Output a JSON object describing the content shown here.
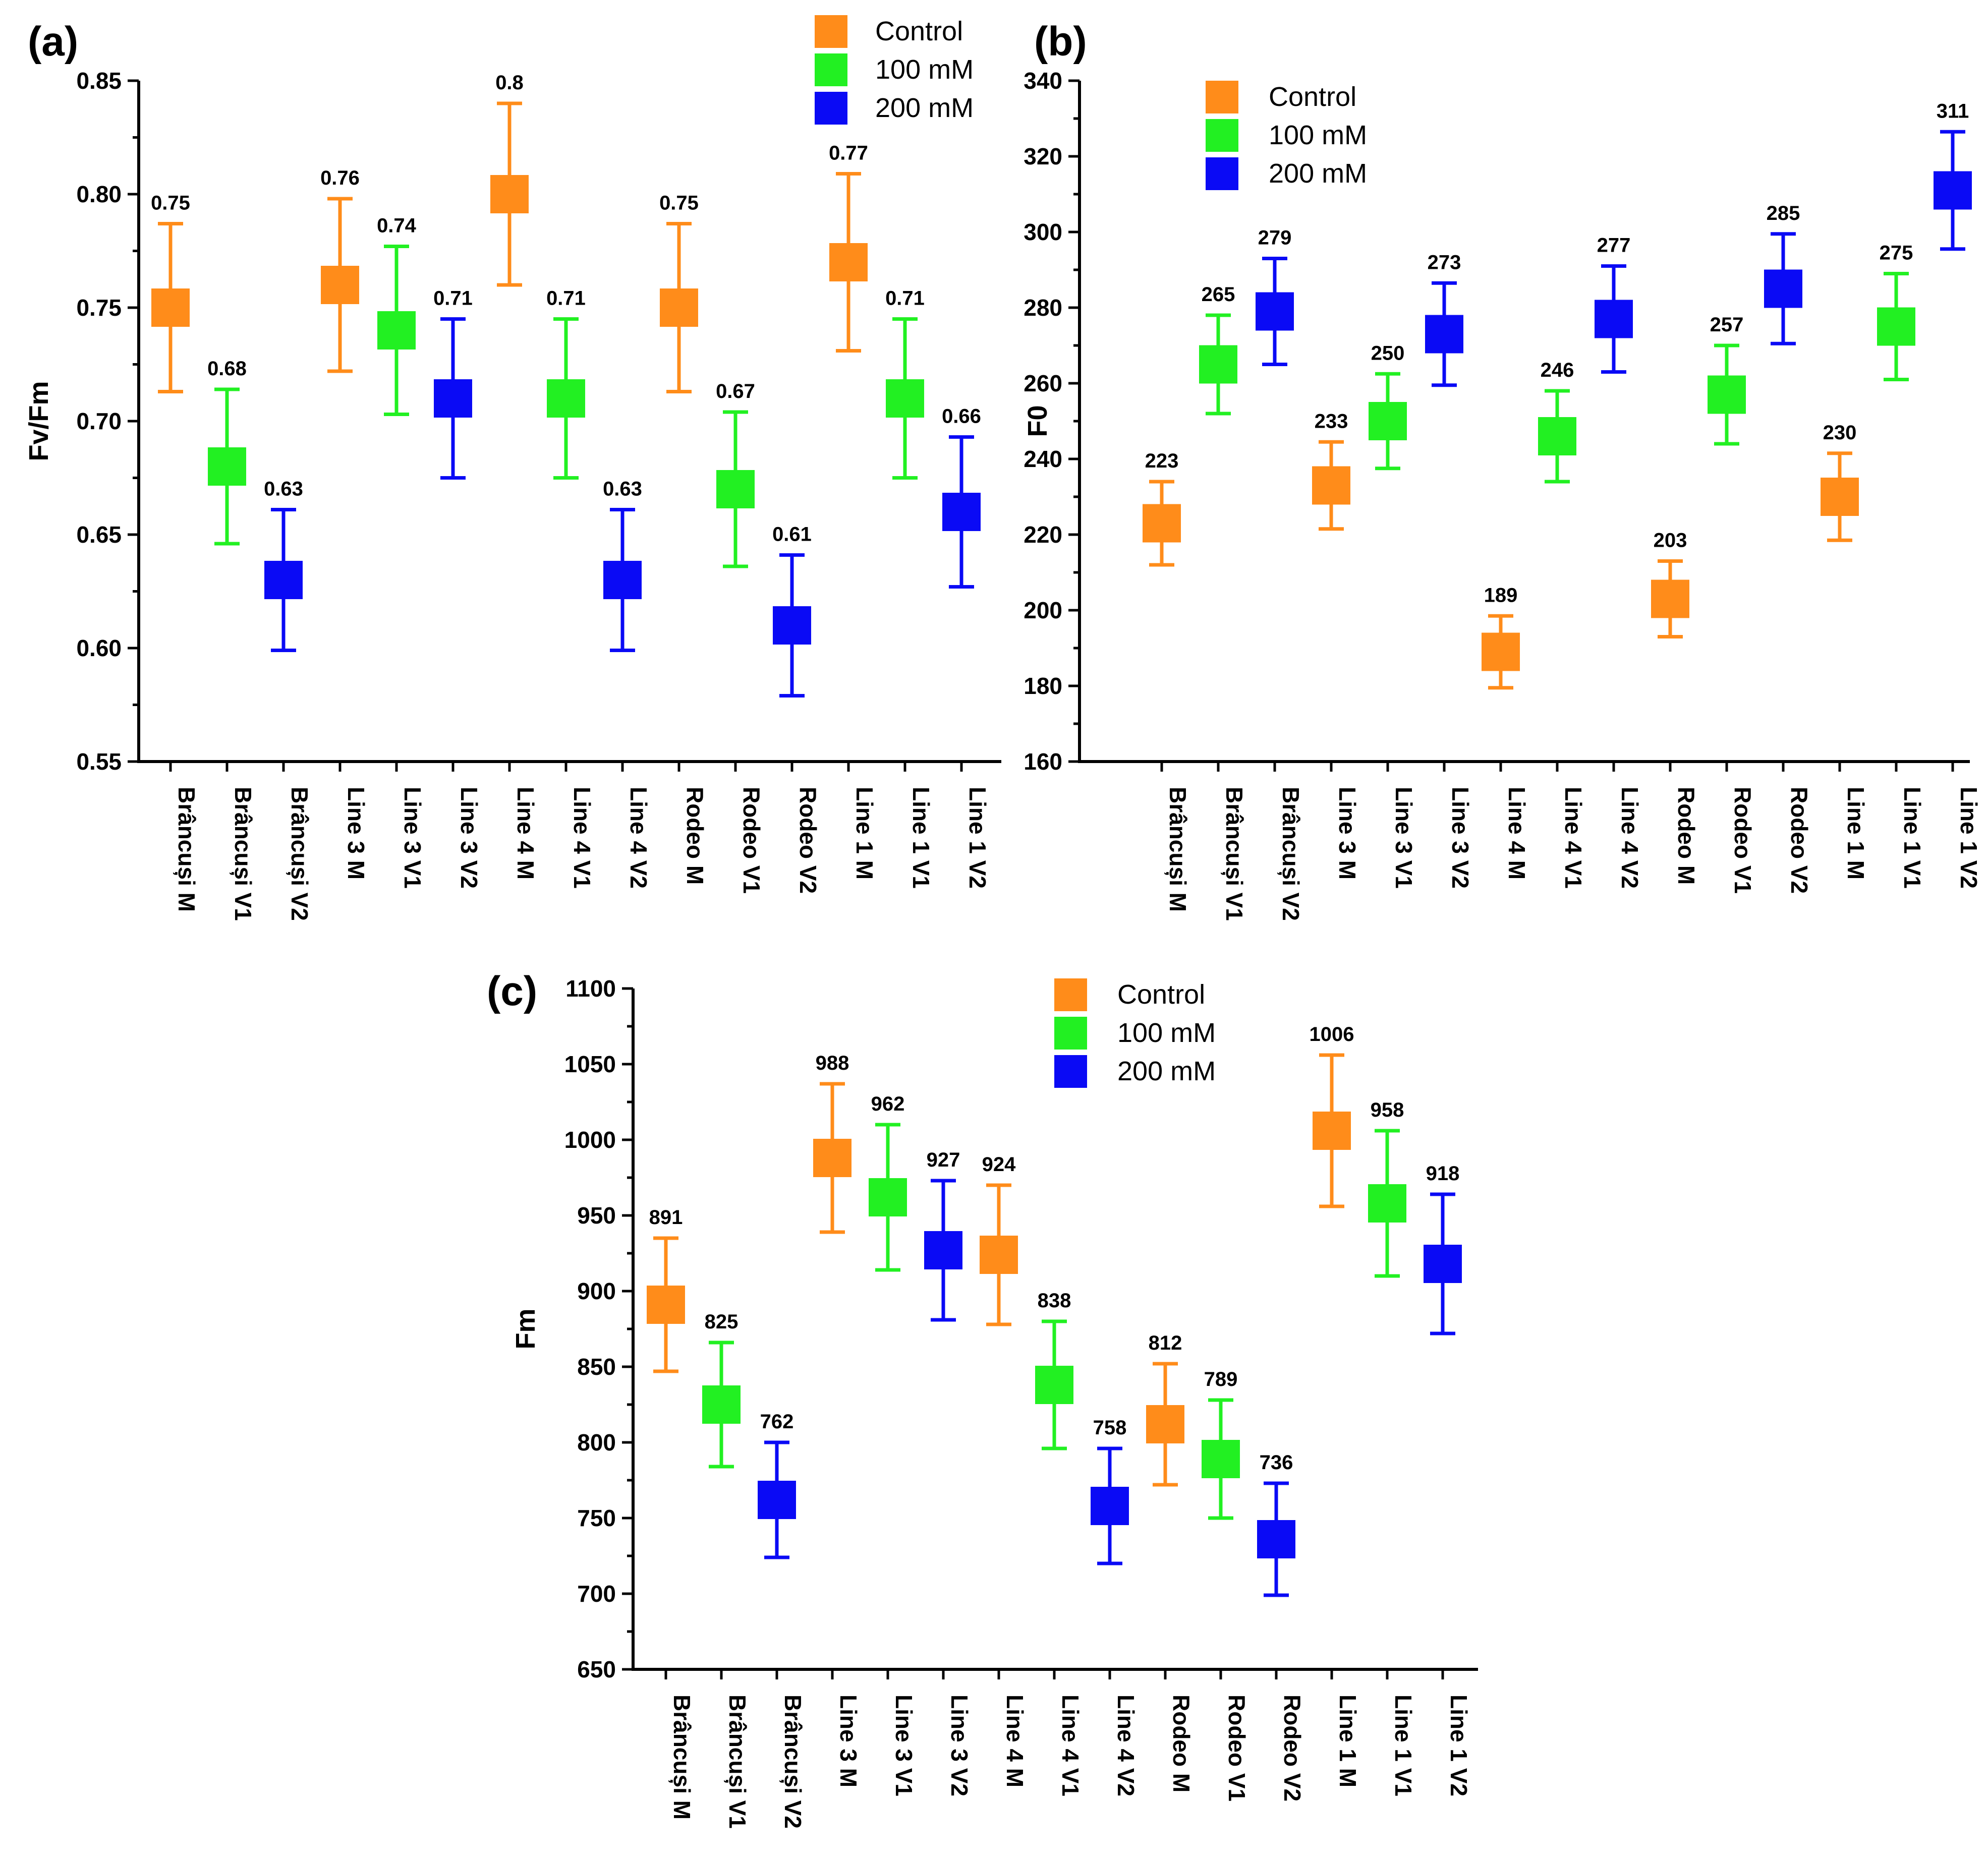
{
  "colors": {
    "control": "#FF8C1A",
    "100mM": "#22F022",
    "200mM": "#0A0AF5"
  },
  "chart_data": [
    {
      "id": "a",
      "panel_label": "(a)",
      "type": "scatter",
      "subtype": "mean-with-error-bars",
      "ylabel": "Fv/Fm",
      "ylim": [
        0.55,
        0.85
      ],
      "yticks": [
        "0.55",
        "0.60",
        "0.65",
        "0.70",
        "0.75",
        "0.80",
        "0.85"
      ],
      "legend": [
        "Control",
        "100 mM",
        "200 mM"
      ],
      "legend_position": "top-right",
      "categories": [
        "Brâncuși M",
        "Brâncuși V1",
        "Brâncuși V2",
        "Line 3 M",
        "Line 3 V1",
        "Line 3 V2",
        "Line 4 M",
        "Line 4 V1",
        "Line 4 V2",
        "Rodeo M",
        "Rodeo V1",
        "Rodeo V2",
        "Line 1 M",
        "Line 1 V1",
        "Line 1 V2"
      ],
      "groups": [
        "control",
        "100mM",
        "200mM",
        "control",
        "100mM",
        "200mM",
        "control",
        "100mM",
        "200mM",
        "control",
        "100mM",
        "200mM",
        "control",
        "100mM",
        "200mM"
      ],
      "values": [
        0.75,
        0.68,
        0.63,
        0.76,
        0.74,
        0.71,
        0.8,
        0.71,
        0.63,
        0.75,
        0.67,
        0.61,
        0.77,
        0.71,
        0.66
      ],
      "errors": [
        0.037,
        0.034,
        0.031,
        0.038,
        0.037,
        0.035,
        0.04,
        0.035,
        0.031,
        0.037,
        0.034,
        0.031,
        0.039,
        0.035,
        0.033
      ],
      "value_labels": [
        "0.75",
        "0.68",
        "0.63",
        "0.76",
        "0.74",
        "0.71",
        "0.8",
        "0.71",
        "0.63",
        "0.75",
        "0.67",
        "0.61",
        "0.77",
        "0.71",
        "0.66"
      ]
    },
    {
      "id": "b",
      "panel_label": "(b)",
      "type": "scatter",
      "subtype": "mean-with-error-bars",
      "ylabel": "F0",
      "ylim": [
        160,
        340
      ],
      "yticks": [
        "160",
        "180",
        "200",
        "220",
        "240",
        "260",
        "280",
        "300",
        "320",
        "340"
      ],
      "legend": [
        "Control",
        "100 mM",
        "200 mM"
      ],
      "legend_position": "top-left",
      "categories": [
        "Brâncuși M",
        "Brâncuși V1",
        "Brâncuși V2",
        "Line 3 M",
        "Line 3 V1",
        "Line 3 V2",
        "Line 4 M",
        "Line 4 V1",
        "Line 4 V2",
        "Rodeo M",
        "Rodeo V1",
        "Rodeo V2",
        "Line 1 M",
        "Line 1 V1",
        "Line 1 V2"
      ],
      "groups": [
        "control",
        "100mM",
        "200mM",
        "control",
        "100mM",
        "200mM",
        "control",
        "100mM",
        "200mM",
        "control",
        "100mM",
        "200mM",
        "control",
        "100mM",
        "200mM"
      ],
      "values": [
        223,
        265,
        279,
        233,
        250,
        273,
        189,
        246,
        277,
        203,
        257,
        285,
        230,
        275,
        311
      ],
      "errors": [
        11,
        13,
        14,
        11.5,
        12.5,
        13.5,
        9.5,
        12,
        14,
        10,
        13,
        14.5,
        11.5,
        14,
        15.5
      ],
      "value_labels": [
        "223",
        "265",
        "279",
        "233",
        "250",
        "273",
        "189",
        "246",
        "277",
        "203",
        "257",
        "285",
        "230",
        "275",
        "311"
      ]
    },
    {
      "id": "c",
      "panel_label": "(c)",
      "type": "scatter",
      "subtype": "mean-with-error-bars",
      "ylabel": "Fm",
      "ylim": [
        650,
        1100
      ],
      "yticks": [
        "650",
        "700",
        "750",
        "800",
        "850",
        "900",
        "950",
        "1000",
        "1050",
        "1100"
      ],
      "legend": [
        "Control",
        "100 mM",
        "200 mM"
      ],
      "legend_position": "top-center",
      "categories": [
        "Brâncuși M",
        "Brâncuși V1",
        "Brâncuși V2",
        "Line 3 M",
        "Line 3 V1",
        "Line 3 V2",
        "Line 4 M",
        "Line 4 V1",
        "Line 4 V2",
        "Rodeo M",
        "Rodeo V1",
        "Rodeo V2",
        "Line 1 M",
        "Line 1 V1",
        "Line 1 V2"
      ],
      "groups": [
        "control",
        "100mM",
        "200mM",
        "control",
        "100mM",
        "200mM",
        "control",
        "100mM",
        "200mM",
        "control",
        "100mM",
        "200mM",
        "control",
        "100mM",
        "200mM"
      ],
      "values": [
        891,
        825,
        762,
        988,
        962,
        927,
        924,
        838,
        758,
        812,
        789,
        736,
        1006,
        958,
        918
      ],
      "errors": [
        44,
        41,
        38,
        49,
        48,
        46,
        46,
        42,
        38,
        40,
        39,
        37,
        50,
        48,
        46
      ],
      "value_labels": [
        "891",
        "825",
        "762",
        "988",
        "962",
        "927",
        "924",
        "838",
        "758",
        "812",
        "789",
        "736",
        "1006",
        "958",
        "918"
      ]
    }
  ]
}
